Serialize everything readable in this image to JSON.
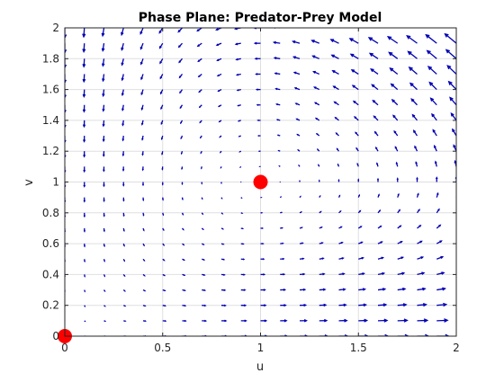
{
  "chart_data": {
    "type": "quiver",
    "title": "Phase Plane: Predator-Prey Model",
    "xlabel": "u",
    "ylabel": "v",
    "xlim": [
      0,
      2
    ],
    "ylim": [
      0,
      2
    ],
    "xticks": [
      0,
      0.5,
      1,
      1.5,
      2
    ],
    "xtick_labels": [
      "0",
      "0.5",
      "1",
      "1.5",
      "2"
    ],
    "yticks": [
      0,
      0.2,
      0.4,
      0.6,
      0.8,
      1,
      1.2,
      1.4,
      1.6,
      1.8,
      2
    ],
    "ytick_labels": [
      "0",
      "0.2",
      "0.4",
      "0.6",
      "0.8",
      "1",
      "1.2",
      "1.4",
      "1.6",
      "1.8",
      "2"
    ],
    "grid": true,
    "vector_field": {
      "du": "u*(1-v)",
      "dv": "v*(u-1)",
      "u_range": [
        0,
        2
      ],
      "v_range": [
        0,
        2
      ],
      "step": 0.1,
      "color": "#0000b4"
    },
    "equilibria": [
      {
        "u": 0,
        "v": 0
      },
      {
        "u": 1,
        "v": 1
      }
    ],
    "equilibrium_color": "#ff0000"
  }
}
